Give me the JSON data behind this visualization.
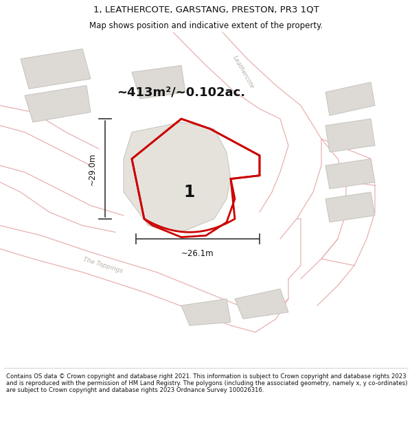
{
  "title": "1, LEATHERCOTE, GARSTANG, PRESTON, PR3 1QT",
  "subtitle": "Map shows position and indicative extent of the property.",
  "footer": "Contains OS data © Crown copyright and database right 2021. This information is subject to Crown copyright and database rights 2023 and is reproduced with the permission of HM Land Registry. The polygons (including the associated geometry, namely x, y co-ordinates) are subject to Crown copyright and database rights 2023 Ordnance Survey 100026316.",
  "area_text": "~413m²/~0.102ac.",
  "label": "1",
  "width_label": "~26.1m",
  "height_label": "~29.0m",
  "map_bg": "#f7f6f4",
  "road_line_color": "#e8b0b0",
  "building_color": "#dddad5",
  "building_stroke": "#c5c2bc",
  "red_polygon_color": "#cc0000",
  "dim_color": "#444444",
  "road_label_color": "#b8b0a8",
  "text_color": "#111111"
}
